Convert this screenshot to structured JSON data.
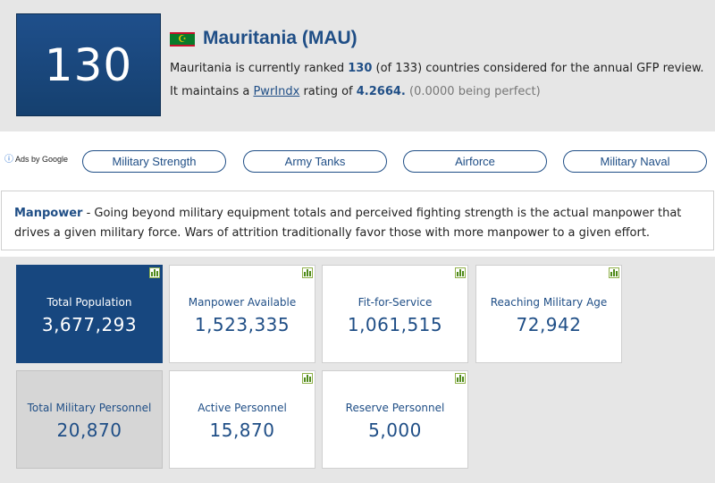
{
  "header": {
    "rank": "130",
    "country_title": "Mauritania (MAU)",
    "flag_icon": "mauritania-flag",
    "summary": {
      "p1": "Mauritania is currently ranked ",
      "rank": "130",
      "p2": " (of 133) countries considered for the annual GFP review. It maintains a ",
      "link": "PwrIndx",
      "p3": " rating of ",
      "rating": "4.2664.",
      "note": " (0.0000 being perfect)"
    }
  },
  "ads_label": "Ads by Google",
  "nav_pills": [
    {
      "label": "Military Strength"
    },
    {
      "label": "Army Tanks"
    },
    {
      "label": "Airforce"
    },
    {
      "label": "Military Naval"
    }
  ],
  "manpower": {
    "lead": "Manpower",
    "text": " - Going beyond military equipment totals and perceived fighting strength is the actual manpower that drives a given military force. Wars of attrition traditionally favor those with more manpower to a given effort."
  },
  "stats": [
    {
      "label": "Total Population",
      "value": "3,677,293"
    },
    {
      "label": "Manpower Available",
      "value": "1,523,335"
    },
    {
      "label": "Fit-for-Service",
      "value": "1,061,515"
    },
    {
      "label": "Reaching Military Age",
      "value": "72,942"
    },
    {
      "label": "Total Military Personnel",
      "value": "20,870"
    },
    {
      "label": "Active Personnel",
      "value": "15,870"
    },
    {
      "label": "Reserve Personnel",
      "value": "5,000"
    }
  ],
  "colors": {
    "brand_blue": "#1f4e86",
    "rank_box": "#15406f",
    "highlight_card": "#17477f",
    "grey_card": "#d6d6d6",
    "chart_icon": "#4f8a1a"
  }
}
